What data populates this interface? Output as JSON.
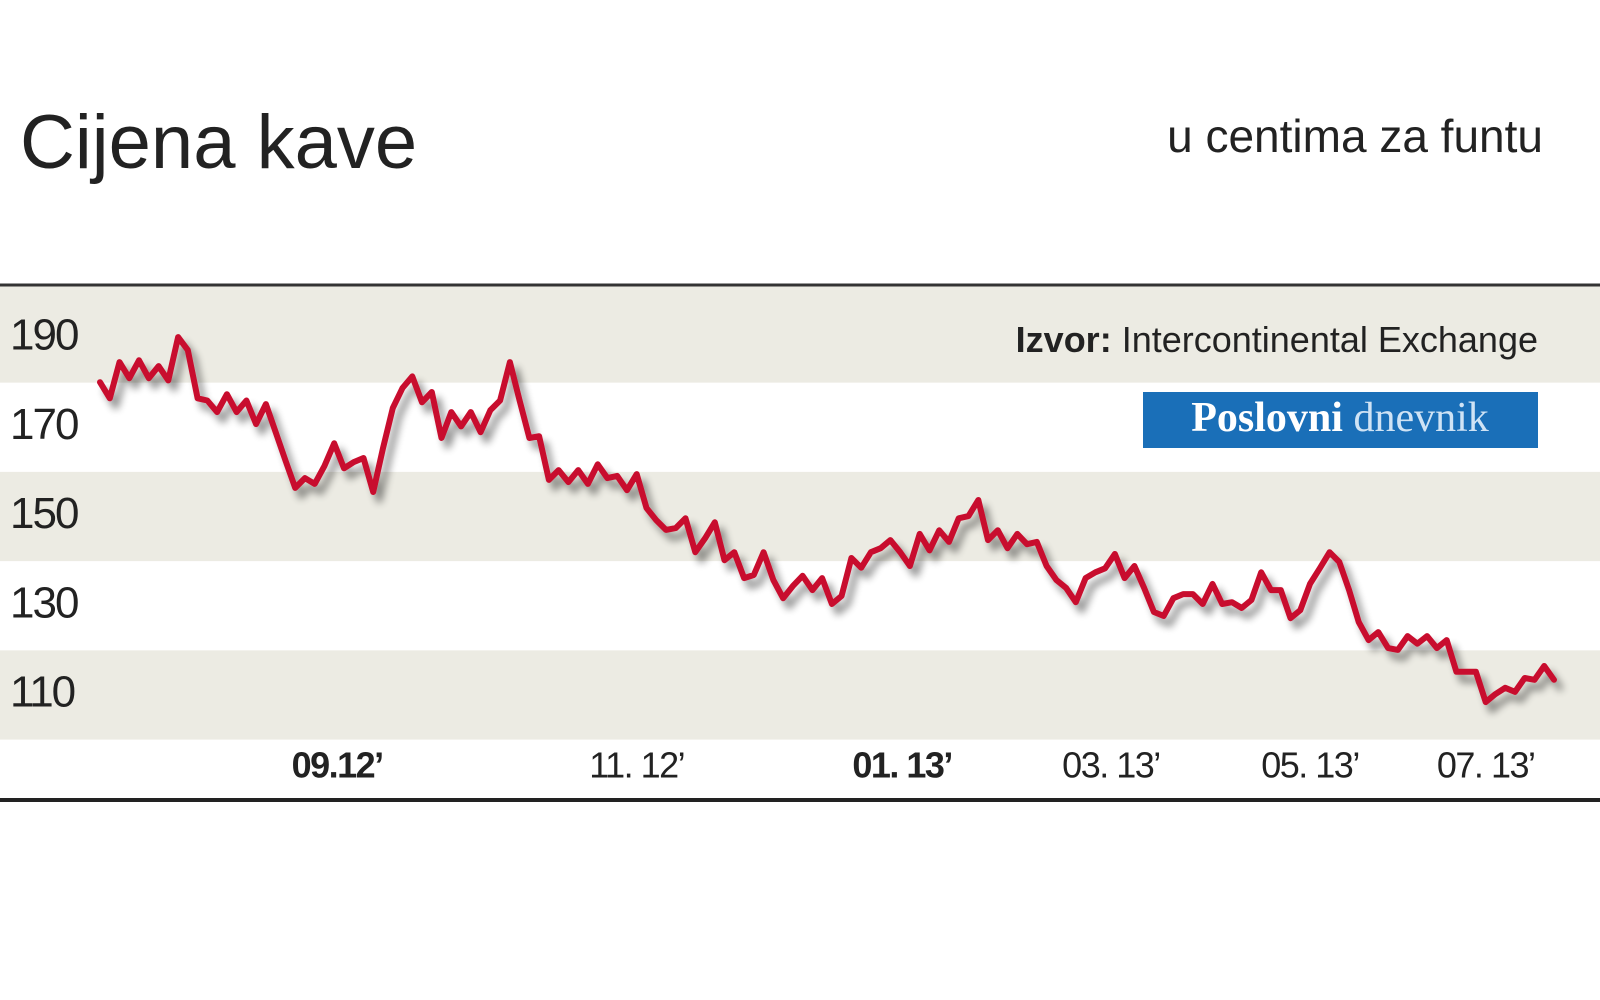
{
  "chart_data": {
    "type": "line",
    "title": "Cijena kave",
    "subtitle": "u centima za funtu",
    "source_label": "Izvor:",
    "source": "Intercontinental Exchange",
    "logo": {
      "first": "Poslovni",
      "second": "dnevnik"
    },
    "color": "#c8102e",
    "band_color": "#ecebe3",
    "values": [
      180.1,
      176.5,
      184.6,
      181,
      185,
      181,
      183.7,
      180.5,
      190.2,
      187.3,
      176.5,
      176,
      173.4,
      177.4,
      173.4,
      176,
      170.7,
      175.2,
      168.9,
      162.6,
      156.4,
      158.6,
      157.3,
      161.3,
      166.4,
      160.8,
      162.2,
      163.1,
      155.5,
      165.3,
      174.3,
      178.8,
      181.4,
      175.6,
      177.9,
      167.6,
      173.4,
      170.2,
      173.4,
      168.9,
      173.8,
      176,
      184.6,
      176,
      167.6,
      168,
      158.2,
      160.4,
      157.7,
      160.4,
      157.3,
      161.7,
      158.6,
      159.1,
      155.9,
      159.5,
      151.9,
      149.2,
      147,
      147.4,
      149.6,
      142,
      145.1,
      148.7,
      140.2,
      142,
      136.2,
      136.9,
      142,
      135.8,
      131.7,
      134.4,
      136.7,
      133.5,
      136.2,
      130.4,
      132.2,
      140.7,
      138.5,
      142,
      142.9,
      144.7,
      142,
      138.9,
      146.1,
      142.4,
      146.9,
      144.3,
      149.6,
      150.1,
      153.7,
      144.7,
      146.9,
      142.9,
      146.1,
      143.8,
      144.3,
      138.9,
      135.8,
      134,
      130.8,
      136.2,
      137.5,
      138.4,
      141.6,
      136.2,
      138.9,
      134,
      128.6,
      127.7,
      131.7,
      132.6,
      132.6,
      130.4,
      134.9,
      130.4,
      130.8,
      129.5,
      131.3,
      137.5,
      133.5,
      133.5,
      127.2,
      129,
      134.9,
      138.4,
      142,
      139.8,
      133.5,
      126.3,
      122.3,
      124.1,
      120.5,
      120.1,
      123.2,
      121.5,
      123.2,
      120.5,
      122.3,
      115.2,
      115.2,
      115.2,
      108.4,
      110.2,
      111.6,
      110.7,
      113.8,
      113.4,
      116.5,
      113.4
    ],
    "xlim": [
      0,
      149
    ],
    "xticks": [
      {
        "value": 24.3,
        "label": "09.12’",
        "bold": true
      },
      {
        "value": 55,
        "label": "11. 12’"
      },
      {
        "value": 82.2,
        "label": "01. 13’",
        "bold": true
      },
      {
        "value": 103.6,
        "label": "03. 13’"
      },
      {
        "value": 124,
        "label": "05. 13’"
      },
      {
        "value": 142,
        "label": "07. 13’"
      }
    ],
    "ylim": [
      100,
      200
    ],
    "yticks": [
      110,
      130,
      150,
      170,
      190
    ]
  }
}
